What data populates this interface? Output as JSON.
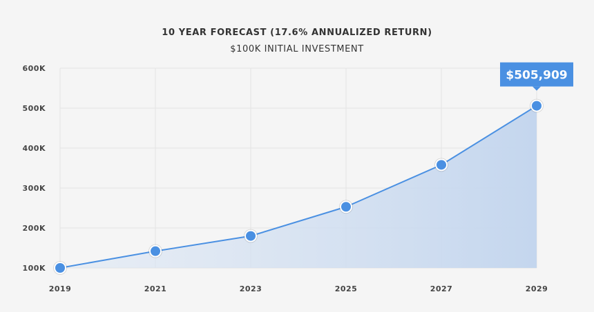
{
  "colors": {
    "background": "#f5f5f5",
    "line": "#4a90e2",
    "marker_fill": "#4a90e2",
    "marker_ring": "#ffffff",
    "area_fill": "#c7d8ef",
    "grid": "#e3e3e3",
    "callout_bg": "#4a90e2"
  },
  "chart_data": {
    "type": "area",
    "title": "10 YEAR FORECAST (17.6% ANNUALIZED RETURN)",
    "subtitle": "$100K INITIAL INVESTMENT",
    "xlabel": "",
    "ylabel": "",
    "x": [
      2019,
      2021,
      2023,
      2025,
      2027,
      2029
    ],
    "x_tick_labels": [
      "2019",
      "2021",
      "2023",
      "2025",
      "2027",
      "2029"
    ],
    "series": [
      {
        "values": [
          100000,
          142000,
          180000,
          253000,
          358000,
          505909
        ]
      }
    ],
    "ylim": [
      100000,
      600000
    ],
    "y_ticks": [
      100000,
      200000,
      300000,
      400000,
      500000,
      600000
    ],
    "y_tick_labels": [
      "100K",
      "200K",
      "300K",
      "400K",
      "500K",
      "600K"
    ],
    "grid": true,
    "annotation": {
      "label": "$505,909",
      "x": 2029,
      "y": 505909
    }
  }
}
